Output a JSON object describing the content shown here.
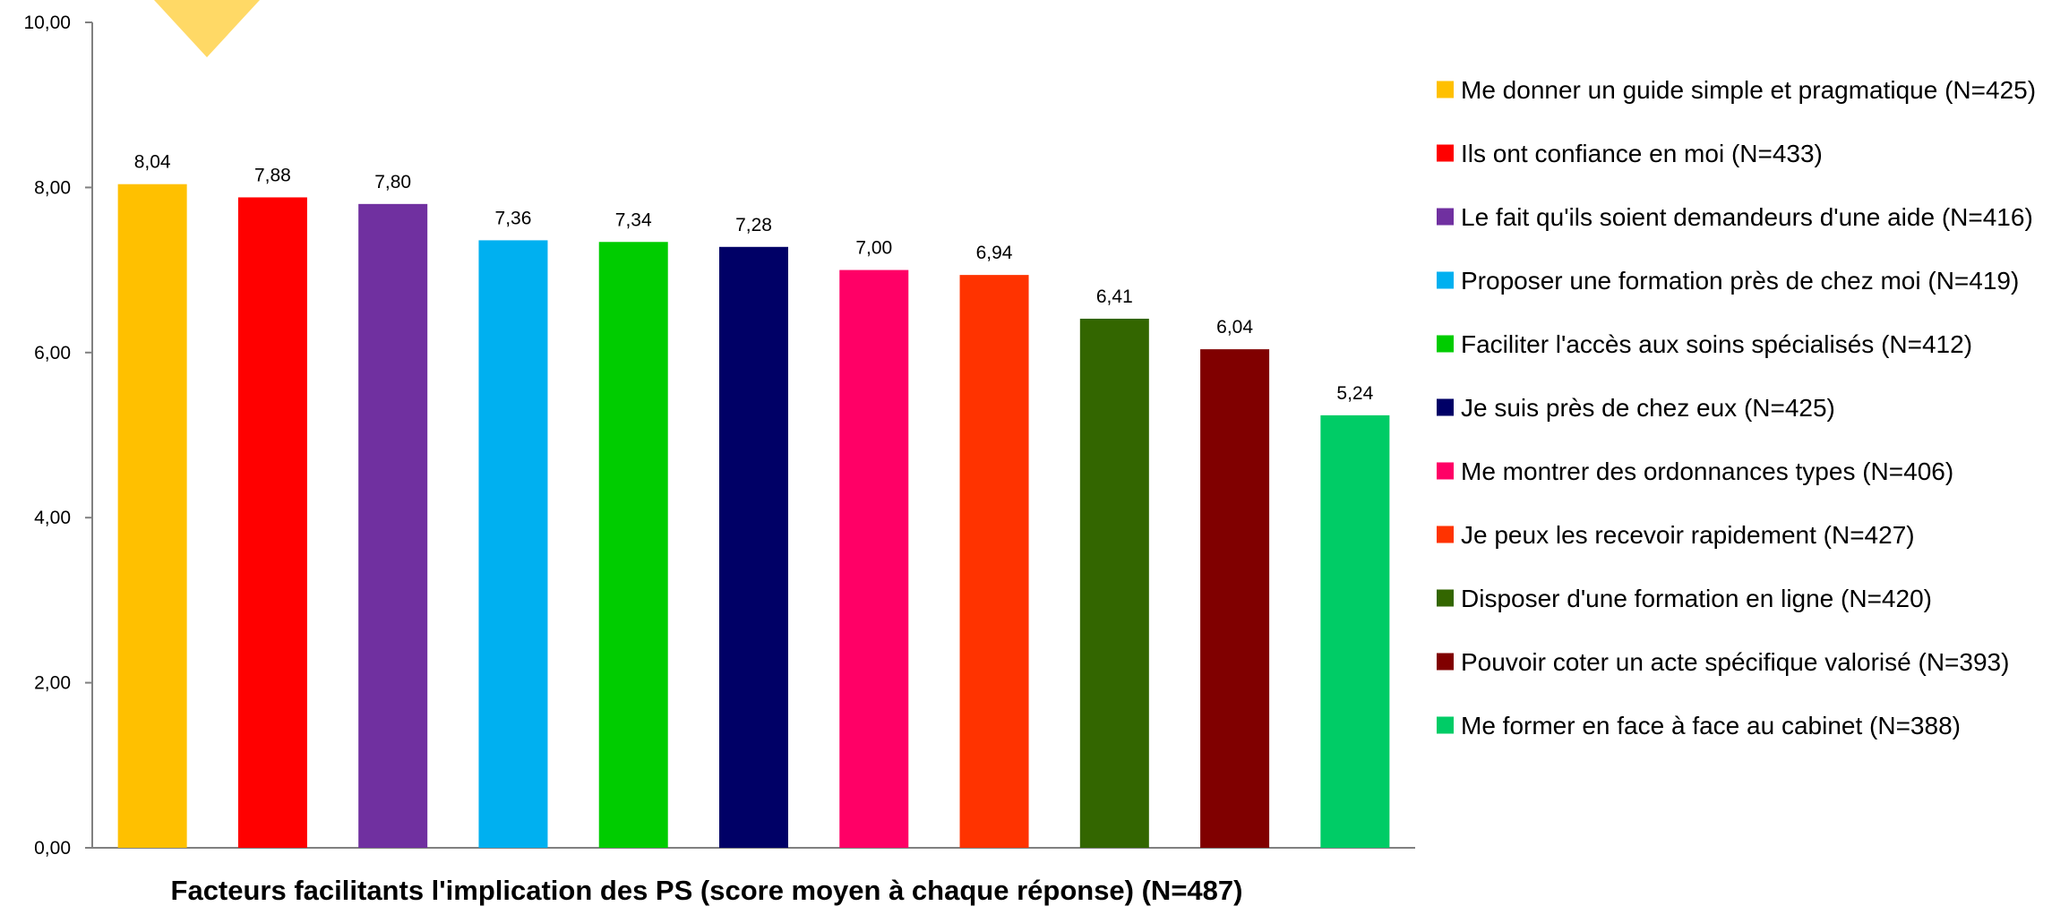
{
  "chart_data": {
    "type": "bar",
    "title": "Facteurs facilitants l'implication des PS (score moyen à chaque réponse) (N=487)",
    "xlabel": "",
    "ylabel": "",
    "ylim": [
      0,
      10
    ],
    "yticks": [
      "0,00",
      "2,00",
      "4,00",
      "6,00",
      "8,00",
      "10,00"
    ],
    "ytick_values": [
      0,
      2,
      4,
      6,
      8,
      10
    ],
    "grid": false,
    "legend_position": "right",
    "categories": [
      "Me donner un guide simple et pragmatique (N=425)",
      "Ils ont confiance en moi (N=433)",
      "Le fait qu'ils soient demandeurs d'une aide (N=416)",
      "Proposer une formation près de chez moi (N=419)",
      "Faciliter l'accès aux soins spécialisés (N=412)",
      "Je suis près de chez eux (N=425)",
      "Me montrer des ordonnances types (N=406)",
      "Je peux les recevoir rapidement (N=427)",
      "Disposer d'une formation en ligne (N=420)",
      "Pouvoir coter un acte spécifique valorisé (N=393)",
      "Me former en face à face au cabinet (N=388)"
    ],
    "values": [
      8.04,
      7.88,
      7.8,
      7.36,
      7.34,
      7.28,
      7.0,
      6.94,
      6.41,
      6.04,
      5.24
    ],
    "value_labels": [
      "8,04",
      "7,88",
      "7,80",
      "7,36",
      "7,34",
      "7,28",
      "7,00",
      "6,94",
      "6,41",
      "6,04",
      "5,24"
    ],
    "colors": [
      "#FFC000",
      "#FF0000",
      "#7030A0",
      "#00B0F0",
      "#00CC00",
      "#000066",
      "#FF0066",
      "#FF3300",
      "#336600",
      "#800000",
      "#00CC66"
    ],
    "decoration_color": "#FFD966"
  }
}
